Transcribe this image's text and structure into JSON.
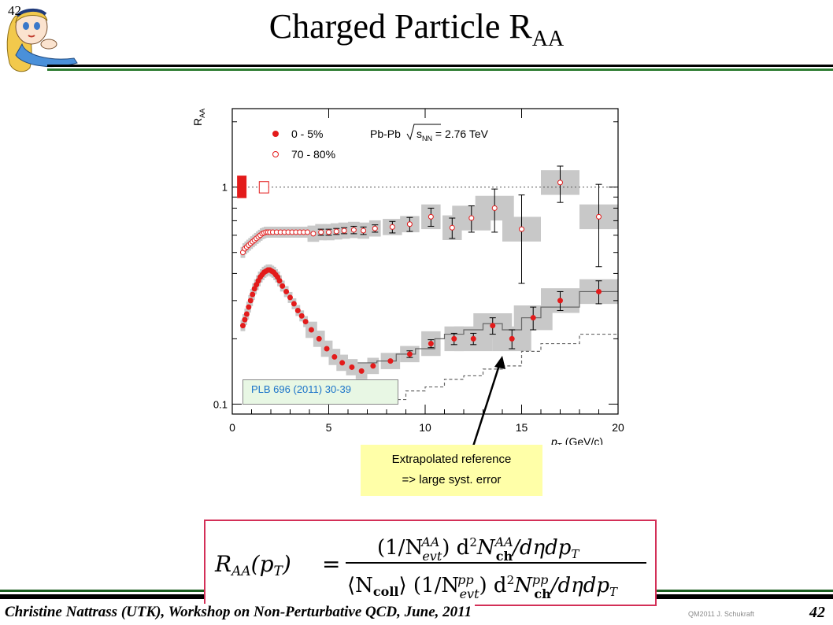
{
  "slide": {
    "number": "42",
    "title_main": "Charged Particle R",
    "title_sub": "AA",
    "footer_author": "Christine Nattrass (UTK), Workshop on Non-Perturbative QCD, June, 2011",
    "footer_credit": "QM2011 J. Schukraft"
  },
  "reference_label": "PLB 696 (2011) 30-39",
  "annotation": {
    "line1": "Extrapolated reference",
    "line2": "=> large syst. error"
  },
  "formula_text": {
    "lhs": "R",
    "lhs_sub": "AA",
    "lhs_arg": "(p",
    "lhs_arg_sub": "T",
    "lhs_close": ")",
    "equals": "=",
    "num": "(1/N",
    "num_sup": "AA",
    "num_sub": "evt",
    "num_mid": ") d",
    "num_sq": "2",
    "num_N": "N",
    "num_N_sup": "AA",
    "num_N_sub": "ch",
    "num_end": "/dηdp",
    "num_end_sub": "T",
    "den_open": "⟨N",
    "den_coll": "coll",
    "den_close": "⟩ (1/N",
    "den_sup": "pp",
    "den_sub": "evt",
    "den_mid": ") d",
    "den_sq": "2",
    "den_N": "N",
    "den_N_sup": "pp",
    "den_N_sub": "ch",
    "den_end": "/dηdp",
    "den_end_sub": "T"
  },
  "colors": {
    "central": "#e31b1b",
    "peripheral": "#e31b1b",
    "syst_band": "#c8c8c8",
    "slide_green": "#2e7d32",
    "formula_border": "#d32f57"
  },
  "chart_data": {
    "type": "scatter",
    "y_scale": "log",
    "xlabel": "p",
    "xlabel_sub": "T",
    "xlabel_unit": "(GeV/c)",
    "ylabel": "R",
    "ylabel_sub": "AA",
    "xlim": [
      0,
      20
    ],
    "ylim": [
      0.09,
      2.3
    ],
    "x_ticks": [
      0,
      5,
      10,
      15,
      20
    ],
    "y_tick_labels": [
      {
        "value": 0.1,
        "label": "0.1"
      },
      {
        "value": 1,
        "label": "1"
      }
    ],
    "legend_title": "Pb-Pb",
    "legend_energy_sym": "s",
    "legend_energy_sub": "NN",
    "legend_energy_val": "= 2.76 TeV",
    "reference_line": 1.0,
    "series": [
      {
        "name": "0 - 5%",
        "marker": "filled",
        "x": [
          0.55,
          0.65,
          0.75,
          0.85,
          0.95,
          1.05,
          1.15,
          1.25,
          1.35,
          1.45,
          1.55,
          1.65,
          1.75,
          1.85,
          1.95,
          2.05,
          2.15,
          2.25,
          2.35,
          2.45,
          2.6,
          2.8,
          3.0,
          3.2,
          3.4,
          3.6,
          3.8,
          4.1,
          4.5,
          4.9,
          5.3,
          5.7,
          6.2,
          6.7,
          7.3,
          8.2,
          9.2,
          10.3,
          11.5,
          12.5,
          13.5,
          14.5,
          15.6,
          17.0,
          19.0
        ],
        "y": [
          0.23,
          0.245,
          0.26,
          0.28,
          0.3,
          0.32,
          0.34,
          0.355,
          0.37,
          0.385,
          0.395,
          0.405,
          0.41,
          0.415,
          0.415,
          0.41,
          0.405,
          0.395,
          0.385,
          0.37,
          0.35,
          0.33,
          0.31,
          0.29,
          0.27,
          0.255,
          0.24,
          0.22,
          0.2,
          0.18,
          0.165,
          0.155,
          0.148,
          0.142,
          0.15,
          0.158,
          0.17,
          0.19,
          0.2,
          0.2,
          0.23,
          0.2,
          0.25,
          0.3,
          0.33
        ],
        "err": [
          0,
          0,
          0,
          0,
          0,
          0,
          0,
          0,
          0,
          0,
          0,
          0,
          0,
          0,
          0,
          0,
          0,
          0,
          0,
          0,
          0,
          0,
          0,
          0,
          0,
          0,
          0,
          0,
          0,
          0,
          0,
          0,
          0,
          0,
          0,
          0,
          0.006,
          0.008,
          0.012,
          0.012,
          0.02,
          0.02,
          0.03,
          0.03,
          0.04
        ]
      },
      {
        "name": "70 - 80%",
        "marker": "open",
        "x": [
          0.55,
          0.65,
          0.75,
          0.85,
          0.95,
          1.05,
          1.15,
          1.25,
          1.35,
          1.45,
          1.55,
          1.65,
          1.75,
          1.85,
          1.95,
          2.1,
          2.3,
          2.5,
          2.7,
          2.9,
          3.1,
          3.3,
          3.5,
          3.7,
          3.9,
          4.2,
          4.6,
          5.0,
          5.4,
          5.8,
          6.3,
          6.8,
          7.4,
          8.3,
          9.2,
          10.3,
          11.4,
          12.4,
          13.6,
          15.0,
          17.0,
          19.0
        ],
        "y": [
          0.5,
          0.52,
          0.53,
          0.54,
          0.55,
          0.56,
          0.57,
          0.58,
          0.59,
          0.6,
          0.61,
          0.615,
          0.62,
          0.62,
          0.62,
          0.62,
          0.62,
          0.62,
          0.62,
          0.62,
          0.62,
          0.62,
          0.62,
          0.62,
          0.62,
          0.61,
          0.62,
          0.62,
          0.625,
          0.63,
          0.635,
          0.63,
          0.645,
          0.655,
          0.675,
          0.73,
          0.65,
          0.72,
          0.8,
          0.64,
          1.05,
          0.73
        ],
        "err": [
          0,
          0,
          0,
          0,
          0,
          0,
          0,
          0,
          0,
          0,
          0,
          0,
          0,
          0,
          0,
          0,
          0,
          0,
          0,
          0,
          0,
          0,
          0,
          0,
          0,
          0,
          0.02,
          0.02,
          0.02,
          0.02,
          0.025,
          0.025,
          0.025,
          0.04,
          0.05,
          0.07,
          0.07,
          0.1,
          0.18,
          0.28,
          0.2,
          0.3
        ]
      }
    ]
  }
}
